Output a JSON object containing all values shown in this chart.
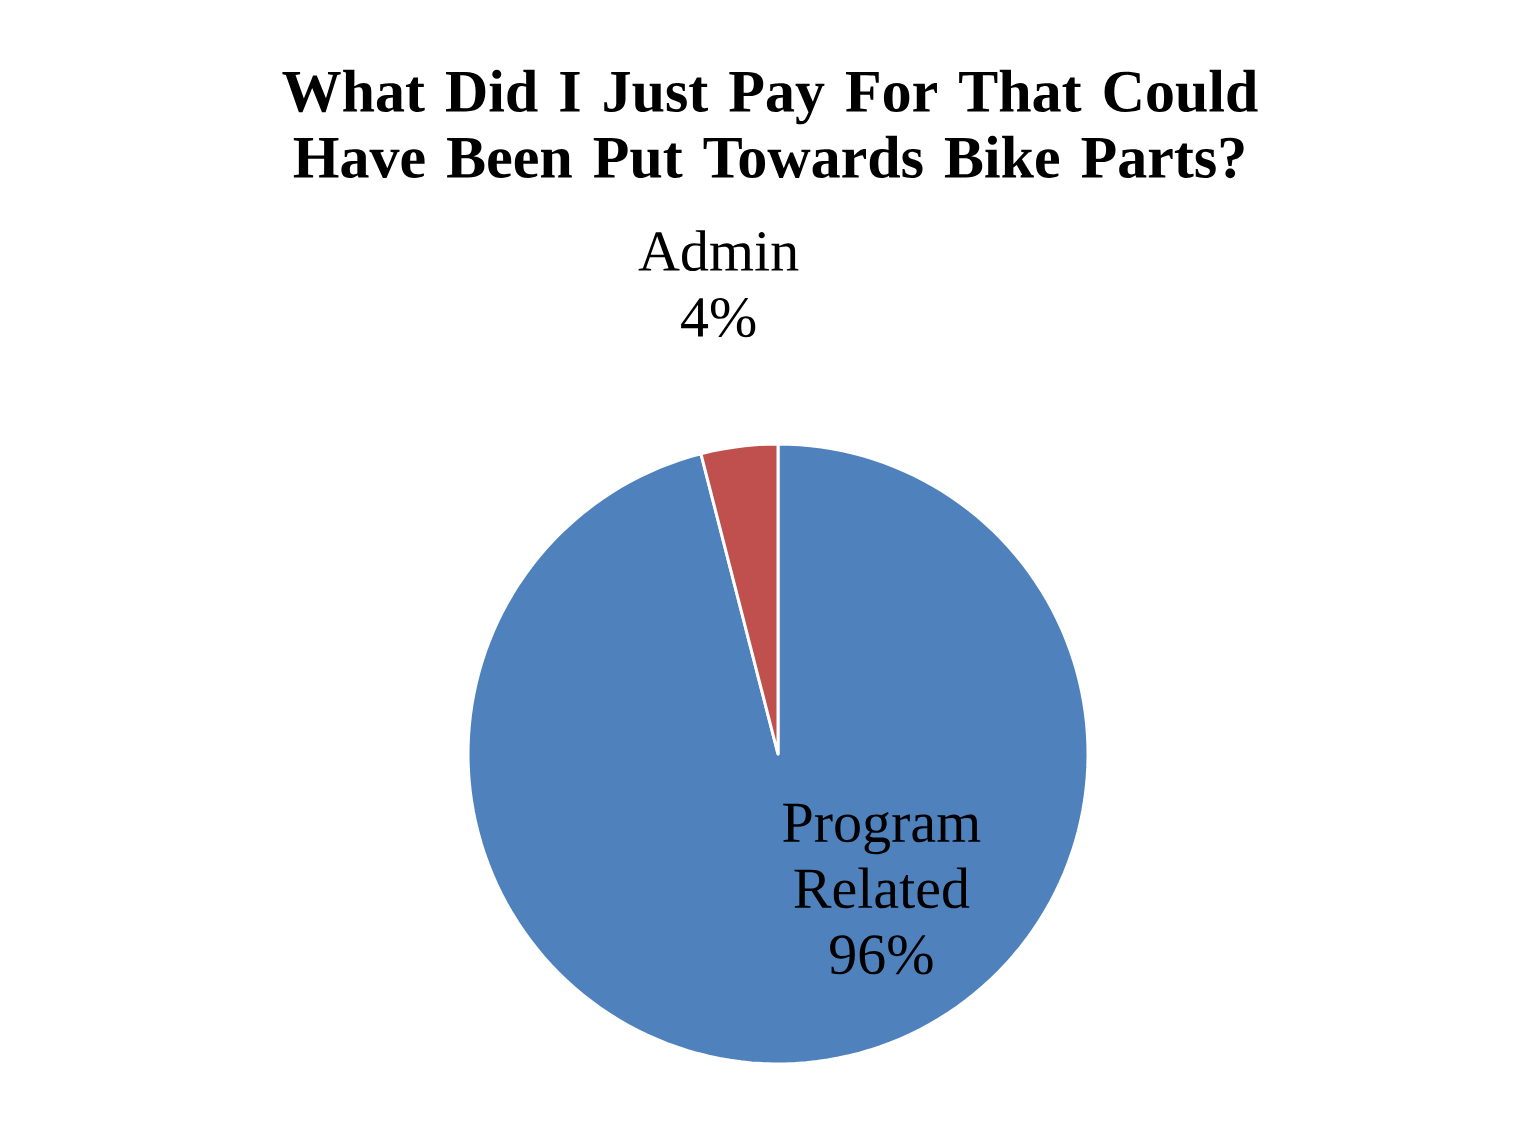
{
  "chart_data": {
    "type": "pie",
    "title": "What Did I Just Pay For That Could Have Been Put Towards Bike Parts?",
    "categories": [
      "Program Related",
      "Admin"
    ],
    "values": [
      96,
      4
    ],
    "colors": [
      "#4f81bd",
      "#c0504d"
    ],
    "value_labels": [
      "96%",
      "4%"
    ]
  }
}
